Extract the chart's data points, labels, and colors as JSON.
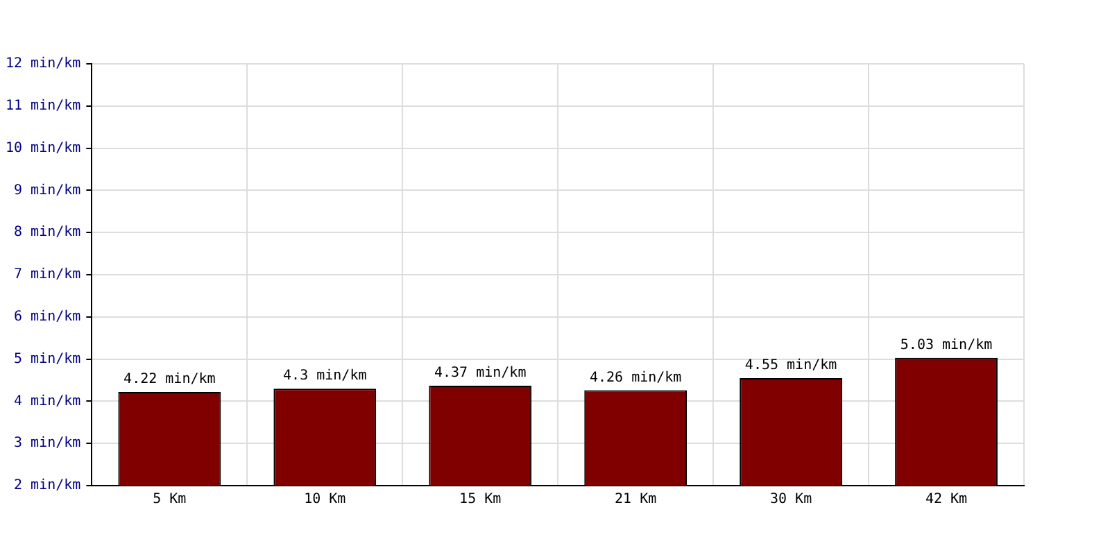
{
  "chart_data": {
    "type": "bar",
    "categories": [
      "5 Km",
      "10 Km",
      "15 Km",
      "21 Km",
      "30 Km",
      "42 Km"
    ],
    "values": [
      4.22,
      4.3,
      4.37,
      4.26,
      4.55,
      5.03
    ],
    "value_labels": [
      "4.22 min/km",
      "4.3 min/km",
      "4.37 min/km",
      "4.26 min/km",
      "4.55 min/km",
      "5.03 min/km"
    ],
    "color": "#800000",
    "ylim": [
      2,
      12
    ],
    "yticks": [
      {
        "value": 2,
        "label": "2 min/km"
      },
      {
        "value": 3,
        "label": "3 min/km"
      },
      {
        "value": 4,
        "label": "4 min/km"
      },
      {
        "value": 5,
        "label": "5 min/km"
      },
      {
        "value": 6,
        "label": "6 min/km"
      },
      {
        "value": 7,
        "label": "7 min/km"
      },
      {
        "value": 8,
        "label": "8 min/km"
      },
      {
        "value": 9,
        "label": "9 min/km"
      },
      {
        "value": 10,
        "label": "10 min/km"
      },
      {
        "value": 11,
        "label": "11 min/km"
      },
      {
        "value": 12,
        "label": "12 min/km"
      }
    ],
    "grid": true
  }
}
